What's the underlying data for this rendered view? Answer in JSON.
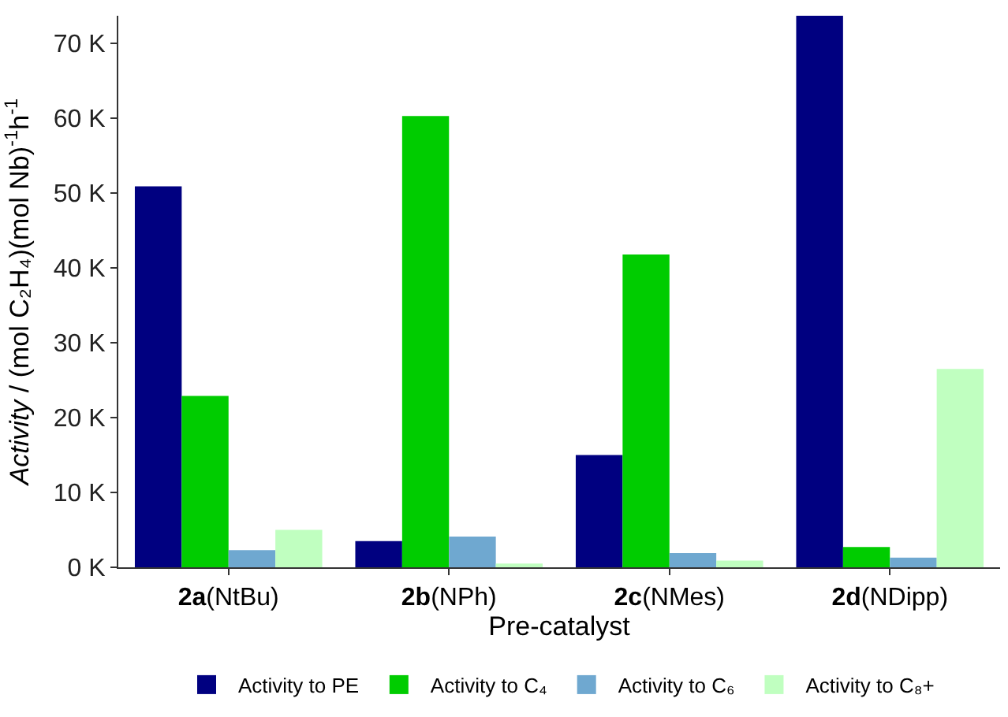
{
  "chart_data": {
    "type": "bar",
    "xlabel": "Pre-catalyst",
    "ylabel": "Activity / (mol C₂H₄)(mol Nb)$^{-1}$h$^{-1}$",
    "categories": [
      "2a(NtBu)",
      "2b(NPh)",
      "2c(NMes)",
      "2d(NDipp)"
    ],
    "series": [
      {
        "name": "Activity to PE",
        "color": "#000080",
        "values": [
          50900,
          3500,
          15000,
          73700
        ]
      },
      {
        "name": "Activity to C₄",
        "color": "#00cc00",
        "values": [
          22900,
          60300,
          41800,
          2700
        ]
      },
      {
        "name": "Activity to C₆",
        "color": "#6fa8d0",
        "values": [
          2300,
          4100,
          1900,
          1300
        ]
      },
      {
        "name": "Activity to C₈+",
        "color": "#c0ffc0",
        "values": [
          5000,
          500,
          900,
          26500
        ]
      }
    ],
    "ylim": [
      0,
      73700
    ],
    "yticks": [
      {
        "value": 0,
        "label": "0 K"
      },
      {
        "value": 10000,
        "label": "10 K"
      },
      {
        "value": 20000,
        "label": "20 K"
      },
      {
        "value": 30000,
        "label": "30 K"
      },
      {
        "value": 40000,
        "label": "40 K"
      },
      {
        "value": 50000,
        "label": "50 K"
      },
      {
        "value": 60000,
        "label": "60 K"
      },
      {
        "value": 70000,
        "label": "70 K"
      }
    ],
    "grid": false,
    "legend": "bottom"
  }
}
